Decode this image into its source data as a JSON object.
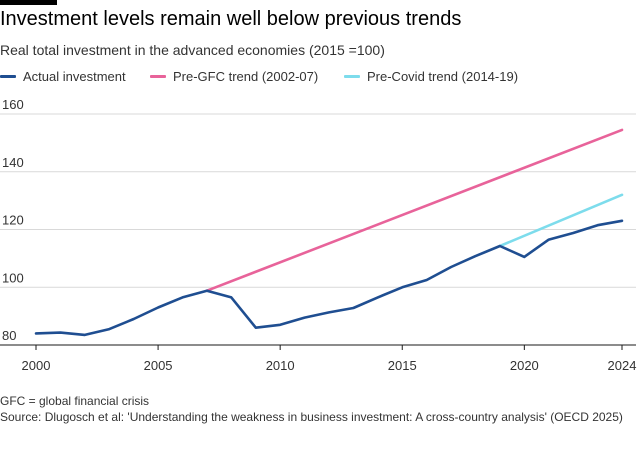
{
  "header": {
    "title": "Investment levels remain well below previous trends",
    "subtitle": "Real total investment in the advanced economies (2015 =100)"
  },
  "colors": {
    "actual": "#1f4e91",
    "pre_gfc": "#e8639a",
    "pre_covid": "#7ddcec",
    "grid": "#d9d9d9",
    "axis": "#1a1a1a",
    "tick_text": "#333333"
  },
  "chart_data": {
    "type": "line",
    "title": "Investment levels remain well below previous trends",
    "subtitle": "Real total investment in the advanced economies (2015 =100)",
    "xlabel": "",
    "ylabel": "",
    "xlim": [
      2000,
      2024
    ],
    "ylim": [
      80,
      160
    ],
    "x_ticks": [
      "2000",
      "2005",
      "2010",
      "2015",
      "2020",
      "2024"
    ],
    "y_ticks": [
      "80",
      "100",
      "120",
      "140",
      "160"
    ],
    "grid": true,
    "legend_position": "top-left",
    "series": [
      {
        "name": "Actual investment",
        "color": "#1f4e91",
        "x": [
          2000,
          2001,
          2002,
          2003,
          2004,
          2005,
          2006,
          2007,
          2008,
          2009,
          2010,
          2011,
          2012,
          2013,
          2014,
          2015,
          2016,
          2017,
          2018,
          2019,
          2020,
          2021,
          2022,
          2023,
          2024
        ],
        "y": [
          84,
          84.3,
          83.5,
          85.5,
          89,
          93,
          96.5,
          98.8,
          96.5,
          86,
          87,
          89.5,
          91.3,
          92.8,
          96.5,
          100,
          102.5,
          107,
          110.8,
          114.3,
          110.5,
          116.5,
          118.8,
          121.5,
          123
        ]
      },
      {
        "name": "Pre-GFC trend (2002-07)",
        "color": "#e8639a",
        "x": [
          2007,
          2024
        ],
        "y": [
          98.8,
          154.5
        ]
      },
      {
        "name": "Pre-Covid trend (2014-19)",
        "color": "#7ddcec",
        "x": [
          2019,
          2024
        ],
        "y": [
          114.3,
          132
        ]
      }
    ]
  },
  "footnotes": {
    "gfc": "GFC = global financial crisis",
    "source": "Source: Dlugosch et al: 'Understanding the weakness in business investment: A cross-country analysis' (OECD 2025)"
  }
}
